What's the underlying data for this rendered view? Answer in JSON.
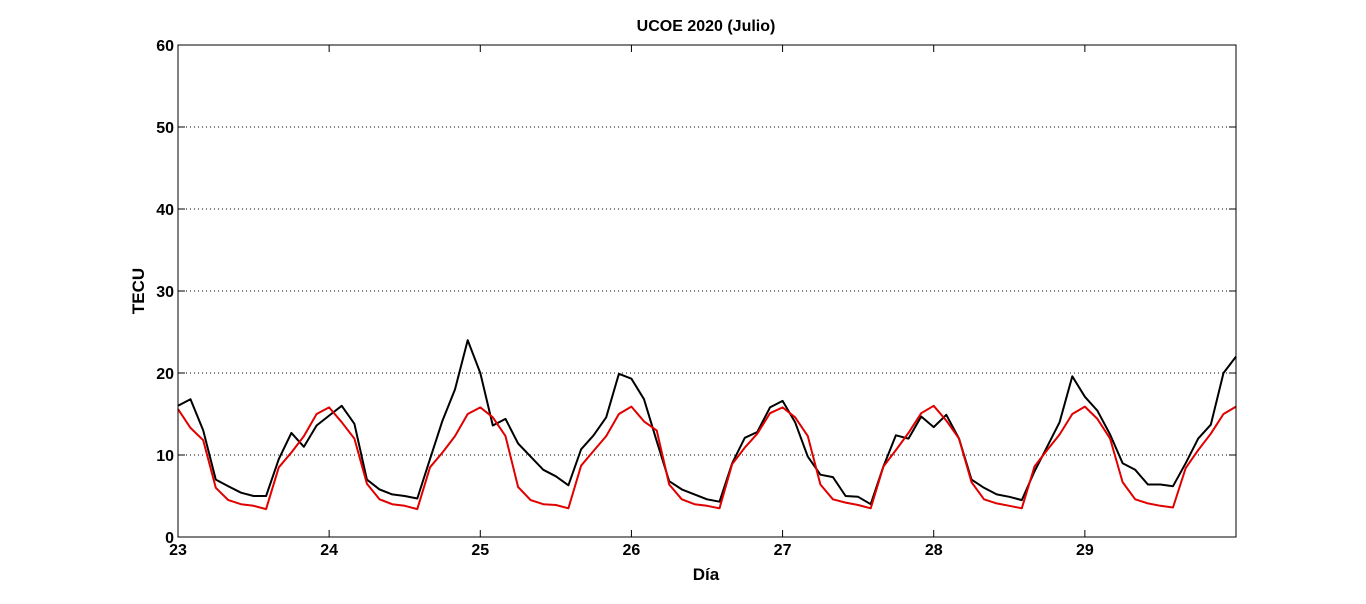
{
  "chart_data": {
    "type": "line",
    "title": "UCOE 2020 (Julio)",
    "xlabel": "Día",
    "ylabel": "TECU",
    "xlim": [
      23,
      30
    ],
    "ylim": [
      0,
      60
    ],
    "x_ticks": [
      23,
      24,
      25,
      26,
      27,
      28,
      29
    ],
    "y_ticks": [
      0,
      10,
      20,
      30,
      40,
      50,
      60
    ],
    "grid": "y-dotted",
    "legend": "none",
    "series": [
      {
        "color": "#000000",
        "x": [
          23.0,
          23.083,
          23.167,
          23.25,
          23.333,
          23.417,
          23.5,
          23.583,
          23.667,
          23.75,
          23.833,
          23.917,
          24.0,
          24.083,
          24.167,
          24.25,
          24.333,
          24.417,
          24.5,
          24.583,
          24.667,
          24.75,
          24.833,
          24.917,
          25.0,
          25.083,
          25.167,
          25.25,
          25.333,
          25.417,
          25.5,
          25.583,
          25.667,
          25.75,
          25.833,
          25.917,
          26.0,
          26.083,
          26.167,
          26.25,
          26.333,
          26.417,
          26.5,
          26.583,
          26.667,
          26.75,
          26.833,
          26.917,
          27.0,
          27.083,
          27.167,
          27.25,
          27.333,
          27.417,
          27.5,
          27.583,
          27.667,
          27.75,
          27.833,
          27.917,
          28.0,
          28.083,
          28.167,
          28.25,
          28.333,
          28.417,
          28.5,
          28.583,
          28.667,
          28.75,
          28.833,
          28.917,
          29.0,
          29.083,
          29.167,
          29.25,
          29.333,
          29.417,
          29.5,
          29.583,
          29.667,
          29.75,
          29.833,
          29.917,
          30.0
        ],
        "values": [
          16.0,
          16.8,
          13.0,
          7.0,
          6.2,
          5.4,
          5.0,
          5.0,
          9.5,
          12.7,
          11.0,
          13.6,
          14.8,
          16.0,
          13.8,
          7.0,
          5.8,
          5.2,
          5.0,
          4.7,
          9.5,
          14.2,
          18.0,
          24.0,
          20.0,
          13.6,
          14.4,
          11.4,
          9.8,
          8.2,
          7.4,
          6.3,
          10.7,
          12.4,
          14.6,
          19.9,
          19.3,
          16.8,
          11.7,
          6.8,
          5.8,
          5.2,
          4.6,
          4.3,
          9.0,
          12.1,
          12.8,
          15.8,
          16.6,
          14.0,
          9.8,
          7.6,
          7.3,
          5.0,
          4.9,
          4.0,
          8.6,
          12.4,
          12.0,
          14.7,
          13.4,
          14.9,
          12.0,
          7.0,
          6.0,
          5.2,
          4.9,
          4.5,
          8.0,
          11.0,
          14.0,
          19.6,
          17.1,
          15.4,
          12.5,
          9.0,
          8.2,
          6.4,
          6.4,
          6.2,
          9.0,
          12.0,
          13.7,
          20.0,
          22.0
        ]
      },
      {
        "color": "#e00000",
        "x": [
          23.0,
          23.083,
          23.167,
          23.25,
          23.333,
          23.417,
          23.5,
          23.583,
          23.667,
          23.75,
          23.833,
          23.917,
          24.0,
          24.083,
          24.167,
          24.25,
          24.333,
          24.417,
          24.5,
          24.583,
          24.667,
          24.75,
          24.833,
          24.917,
          25.0,
          25.083,
          25.167,
          25.25,
          25.333,
          25.417,
          25.5,
          25.583,
          25.667,
          25.75,
          25.833,
          25.917,
          26.0,
          26.083,
          26.167,
          26.25,
          26.333,
          26.417,
          26.5,
          26.583,
          26.667,
          26.75,
          26.833,
          26.917,
          27.0,
          27.083,
          27.167,
          27.25,
          27.333,
          27.417,
          27.5,
          27.583,
          27.667,
          27.75,
          27.833,
          27.917,
          28.0,
          28.083,
          28.167,
          28.25,
          28.333,
          28.417,
          28.5,
          28.583,
          28.667,
          28.75,
          28.833,
          28.917,
          29.0,
          29.083,
          29.167,
          29.25,
          29.333,
          29.417,
          29.5,
          29.583,
          29.667,
          29.75,
          29.833,
          29.917,
          30.0
        ],
        "values": [
          15.6,
          13.3,
          11.8,
          6.0,
          4.5,
          4.0,
          3.8,
          3.4,
          8.5,
          10.3,
          12.3,
          15.0,
          15.8,
          14.0,
          12.0,
          6.5,
          4.6,
          4.0,
          3.8,
          3.4,
          8.5,
          10.3,
          12.3,
          15.0,
          15.8,
          14.6,
          12.3,
          6.1,
          4.5,
          4.0,
          3.9,
          3.5,
          8.7,
          10.5,
          12.3,
          15.0,
          15.9,
          14.1,
          13.0,
          6.4,
          4.6,
          4.0,
          3.8,
          3.5,
          8.9,
          10.9,
          12.6,
          15.1,
          15.8,
          14.6,
          12.3,
          6.4,
          4.6,
          4.2,
          3.9,
          3.5,
          8.6,
          10.6,
          12.7,
          15.1,
          16.0,
          14.2,
          12.0,
          6.7,
          4.6,
          4.1,
          3.8,
          3.5,
          8.6,
          10.6,
          12.5,
          15.0,
          15.9,
          14.4,
          12.0,
          6.7,
          4.6,
          4.1,
          3.8,
          3.6,
          8.4,
          10.6,
          12.6,
          15.0,
          15.9
        ]
      }
    ]
  }
}
